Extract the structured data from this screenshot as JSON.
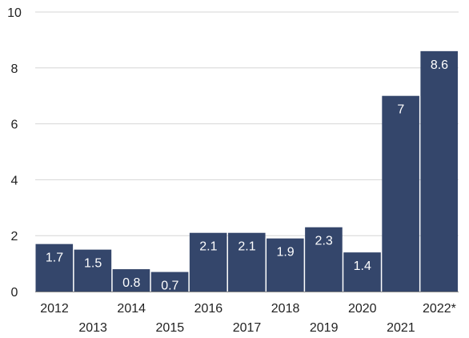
{
  "chart_data": {
    "type": "bar",
    "categories": [
      "2012",
      "2013",
      "2014",
      "2015",
      "2016",
      "2017",
      "2018",
      "2019",
      "2020",
      "2021",
      "2022*"
    ],
    "values": [
      1.7,
      1.5,
      0.8,
      0.7,
      2.1,
      2.1,
      1.9,
      2.3,
      1.4,
      7,
      8.6
    ],
    "data_labels": [
      "1.7",
      "1.5",
      "0.8",
      "0.7",
      "2.1",
      "2.1",
      "1.9",
      "2.3",
      "1.4",
      "7",
      "8.6"
    ],
    "y_ticks": [
      "0",
      "2",
      "4",
      "6",
      "8",
      "10"
    ],
    "ylim": [
      0,
      10
    ],
    "title": "",
    "xlabel": "",
    "ylabel": "",
    "grid": true,
    "bar_color": "#34466b",
    "x_labels_staggered": true
  }
}
